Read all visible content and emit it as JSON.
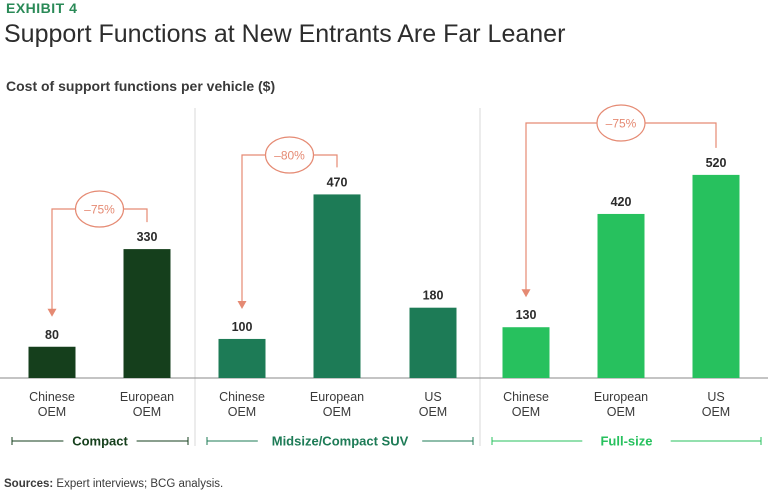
{
  "header": {
    "exhibit": "EXHIBIT 4",
    "title": "Support Functions at New Entrants Are Far Leaner"
  },
  "footer": {
    "sources_label": "Sources:",
    "sources_text": " Expert interviews; BCG analysis."
  },
  "colors": {
    "compact": "#153f1c",
    "midsize": "#1d7b56",
    "fullsize": "#27c15e",
    "annotation": "#e58a73",
    "compact_label": "#153f1c",
    "midsize_label": "#1d7b56",
    "fullsize_label": "#27c15e"
  },
  "chart_data": {
    "type": "bar",
    "title": "Cost of support functions per vehicle ($)",
    "ylabel": "$",
    "ylim": [
      0,
      600
    ],
    "groups": [
      {
        "name": "Compact",
        "color_key": "compact",
        "bars": [
          {
            "label_line1": "Chinese",
            "label_line2": "OEM",
            "value": 80
          },
          {
            "label_line1": "European",
            "label_line2": "OEM",
            "value": 330
          }
        ],
        "annotation": {
          "text": "–75%",
          "from": 1,
          "to": 0
        }
      },
      {
        "name": "Midsize/Compact SUV",
        "color_key": "midsize",
        "bars": [
          {
            "label_line1": "Chinese",
            "label_line2": "OEM",
            "value": 100
          },
          {
            "label_line1": "European",
            "label_line2": "OEM",
            "value": 470
          },
          {
            "label_line1": "US",
            "label_line2": "OEM",
            "value": 180
          }
        ],
        "annotation": {
          "text": "–80%",
          "from": 1,
          "to": 0
        }
      },
      {
        "name": "Full-size",
        "color_key": "fullsize",
        "bars": [
          {
            "label_line1": "Chinese",
            "label_line2": "OEM",
            "value": 130
          },
          {
            "label_line1": "European",
            "label_line2": "OEM",
            "value": 420
          },
          {
            "label_line1": "US",
            "label_line2": "OEM",
            "value": 520
          }
        ],
        "annotation": {
          "text": "–75%",
          "from": 2,
          "to": 0
        }
      }
    ]
  }
}
